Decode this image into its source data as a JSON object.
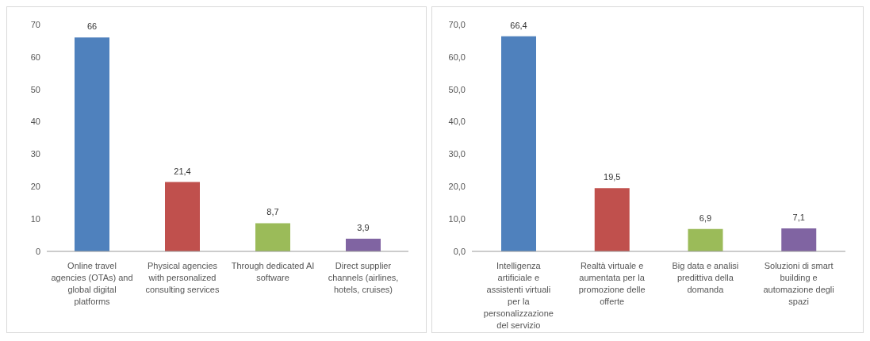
{
  "chart_data": [
    {
      "type": "bar",
      "categories": [
        "Online travel agencies (OTAs) and global digital platforms",
        "Physical agencies with personalized consulting services",
        "Through dedicated AI software",
        "Direct supplier channels (airlines, hotels, cruises)"
      ],
      "values": [
        66,
        21.4,
        8.7,
        3.9
      ],
      "colors": [
        "#4f81bd",
        "#c0504d",
        "#9bbb59",
        "#8064a2"
      ],
      "value_labels": [
        "66",
        "21,4",
        "8,7",
        "3,9"
      ],
      "ylim": [
        0,
        70
      ],
      "yticks": [
        0,
        10,
        20,
        30,
        40,
        50,
        60,
        70
      ],
      "grid": false,
      "legend": false
    },
    {
      "type": "bar",
      "categories": [
        "Intelligenza artificiale e assistenti virtuali per la personalizzazione del servizio",
        "Realtà virtuale e aumentata per la promozione delle offerte",
        "Big data e analisi predittiva della domanda",
        "Soluzioni di smart building e automazione degli spazi"
      ],
      "values": [
        66.4,
        19.5,
        6.9,
        7.1
      ],
      "colors": [
        "#4f81bd",
        "#c0504d",
        "#9bbb59",
        "#8064a2"
      ],
      "value_labels": [
        "66,4",
        "19,5",
        "6,9",
        "7,1"
      ],
      "ylim": [
        0,
        70
      ],
      "yticks": [
        {
          "value": 0,
          "label": "0,0"
        },
        {
          "value": 10,
          "label": "10,0"
        },
        {
          "value": 20,
          "label": "20,0"
        },
        {
          "value": 30,
          "label": "30,0"
        },
        {
          "value": 40,
          "label": "40,0"
        },
        {
          "value": 50,
          "label": "50,0"
        },
        {
          "value": 60,
          "label": "60,0"
        },
        {
          "value": 70,
          "label": "70,0"
        }
      ],
      "grid": false,
      "legend": false
    }
  ]
}
